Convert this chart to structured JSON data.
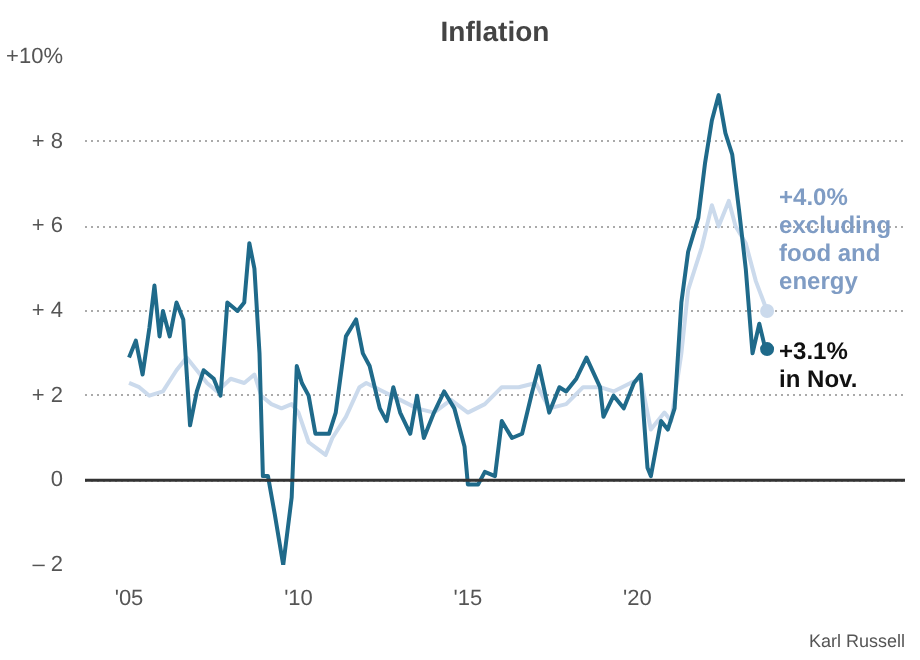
{
  "chart_data": {
    "type": "line",
    "title": "Inflation",
    "xlim": [
      2003.7,
      2027.9
    ],
    "xticks": [
      {
        "value": 2005,
        "label": "'05"
      },
      {
        "value": 2010,
        "label": "'10"
      },
      {
        "value": 2015,
        "label": "'15"
      },
      {
        "value": 2020,
        "label": "'20"
      }
    ],
    "ylim": [
      -2,
      10
    ],
    "yticks": [
      {
        "value": -2,
        "label": "– 2"
      },
      0,
      {
        "value": 2,
        "label": "+ 2"
      },
      {
        "value": 4,
        "label": "+ 4"
      },
      {
        "value": 6,
        "label": "+ 6"
      },
      {
        "value": 8,
        "label": "+ 8"
      },
      {
        "value": 10,
        "label": "+10%"
      }
    ],
    "grid": "y",
    "line_style": "solid",
    "ref_lines": [
      {
        "axis": "y",
        "value": 0,
        "color": "#333333",
        "line_style": "solid"
      }
    ],
    "series": [
      {
        "color": "#cbdaec",
        "x": [
          2005.0,
          2005.3,
          2005.6,
          2006.0,
          2006.4,
          2006.7,
          2007.0,
          2007.3,
          2007.6,
          2008.0,
          2008.4,
          2008.7,
          2008.9,
          2009.2,
          2009.5,
          2009.8,
          2010.0,
          2010.3,
          2010.8,
          2011.0,
          2011.4,
          2011.8,
          2012.0,
          2012.5,
          2013.0,
          2013.5,
          2014.0,
          2014.5,
          2015.0,
          2015.5,
          2016.0,
          2016.5,
          2017.0,
          2017.4,
          2017.9,
          2018.4,
          2018.9,
          2019.3,
          2019.8,
          2020.1,
          2020.4,
          2020.8,
          2021.0,
          2021.3,
          2021.5,
          2021.9,
          2022.2,
          2022.4,
          2022.7,
          2022.9,
          2023.2,
          2023.5,
          2023.83
        ],
        "values": [
          2.3,
          2.2,
          2.0,
          2.1,
          2.6,
          2.9,
          2.6,
          2.3,
          2.1,
          2.4,
          2.3,
          2.5,
          2.0,
          1.8,
          1.7,
          1.8,
          1.6,
          0.9,
          0.6,
          1.0,
          1.5,
          2.2,
          2.3,
          2.1,
          1.9,
          1.7,
          1.6,
          1.9,
          1.6,
          1.8,
          2.2,
          2.2,
          2.3,
          1.7,
          1.8,
          2.2,
          2.2,
          2.1,
          2.3,
          2.4,
          1.2,
          1.6,
          1.4,
          3.0,
          4.5,
          5.5,
          6.5,
          6.0,
          6.6,
          6.0,
          5.6,
          4.7,
          4.0
        ]
      },
      {
        "color": "#1f6a8a",
        "x": [
          2005.0,
          2005.2,
          2005.4,
          2005.6,
          2005.75,
          2005.9,
          2006.0,
          2006.2,
          2006.4,
          2006.6,
          2006.8,
          2007.0,
          2007.2,
          2007.5,
          2007.7,
          2007.9,
          2008.2,
          2008.4,
          2008.55,
          2008.7,
          2008.85,
          2008.95,
          2009.1,
          2009.3,
          2009.55,
          2009.8,
          2009.95,
          2010.1,
          2010.3,
          2010.5,
          2010.9,
          2011.1,
          2011.4,
          2011.7,
          2011.9,
          2012.1,
          2012.4,
          2012.6,
          2012.8,
          2013.0,
          2013.3,
          2013.5,
          2013.7,
          2014.0,
          2014.3,
          2014.6,
          2014.9,
          2015.0,
          2015.3,
          2015.5,
          2015.8,
          2016.0,
          2016.3,
          2016.6,
          2016.9,
          2017.1,
          2017.4,
          2017.7,
          2017.9,
          2018.2,
          2018.5,
          2018.9,
          2019.0,
          2019.3,
          2019.6,
          2019.9,
          2020.1,
          2020.3,
          2020.4,
          2020.7,
          2020.9,
          2021.1,
          2021.3,
          2021.5,
          2021.8,
          2022.0,
          2022.2,
          2022.4,
          2022.6,
          2022.8,
          2023.0,
          2023.2,
          2023.4,
          2023.6,
          2023.75,
          2023.83
        ],
        "values": [
          2.9,
          3.3,
          2.5,
          3.6,
          4.6,
          3.4,
          4.0,
          3.4,
          4.2,
          3.8,
          1.3,
          2.1,
          2.6,
          2.4,
          2.0,
          4.2,
          4.0,
          4.2,
          5.6,
          5.0,
          3.0,
          0.1,
          0.1,
          -0.8,
          -2.0,
          -0.4,
          2.7,
          2.3,
          2.0,
          1.1,
          1.1,
          1.6,
          3.4,
          3.8,
          3.0,
          2.7,
          1.7,
          1.4,
          2.2,
          1.6,
          1.1,
          2.0,
          1.0,
          1.6,
          2.1,
          1.7,
          0.8,
          -0.1,
          -0.1,
          0.2,
          0.1,
          1.4,
          1.0,
          1.1,
          2.1,
          2.7,
          1.6,
          2.2,
          2.1,
          2.4,
          2.9,
          2.2,
          1.5,
          2.0,
          1.7,
          2.3,
          2.5,
          0.3,
          0.1,
          1.4,
          1.2,
          1.7,
          4.2,
          5.4,
          6.2,
          7.5,
          8.5,
          9.1,
          8.2,
          7.7,
          6.4,
          5.0,
          3.0,
          3.7,
          3.2,
          3.1
        ]
      }
    ],
    "annotations": [
      {
        "text": "+4.0% excluding food and energy",
        "x": 2023.83,
        "y": 4.0
      },
      {
        "text": "+3.1% in Nov.",
        "x": 2023.83,
        "y": 3.1
      },
      "Karl Russell"
    ]
  }
}
